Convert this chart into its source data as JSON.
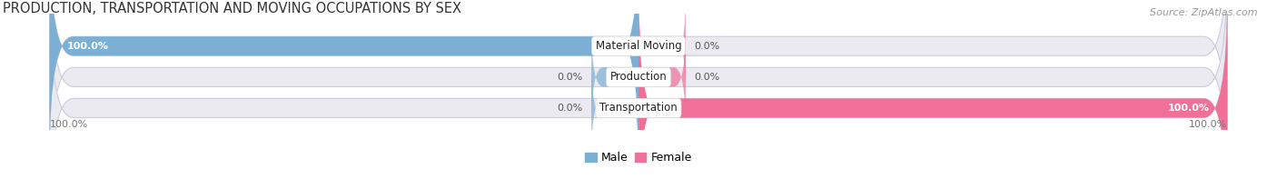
{
  "title": "PRODUCTION, TRANSPORTATION AND MOVING OCCUPATIONS BY SEX",
  "source": "Source: ZipAtlas.com",
  "categories": [
    "Material Moving",
    "Production",
    "Transportation"
  ],
  "male_values": [
    100.0,
    0.0,
    0.0
  ],
  "female_values": [
    0.0,
    0.0,
    100.0
  ],
  "male_color": "#7BAFD4",
  "female_color": "#F07098",
  "bar_bg_color": "#EAEAF0",
  "bar_height": 0.62,
  "x_left_label": "100.0%",
  "x_right_label": "100.0%",
  "title_fontsize": 10.5,
  "source_fontsize": 8,
  "value_fontsize": 8,
  "cat_fontsize": 8.5,
  "legend_fontsize": 9,
  "figsize": [
    14.06,
    1.97
  ],
  "dpi": 100,
  "small_bar_size": 8.0
}
